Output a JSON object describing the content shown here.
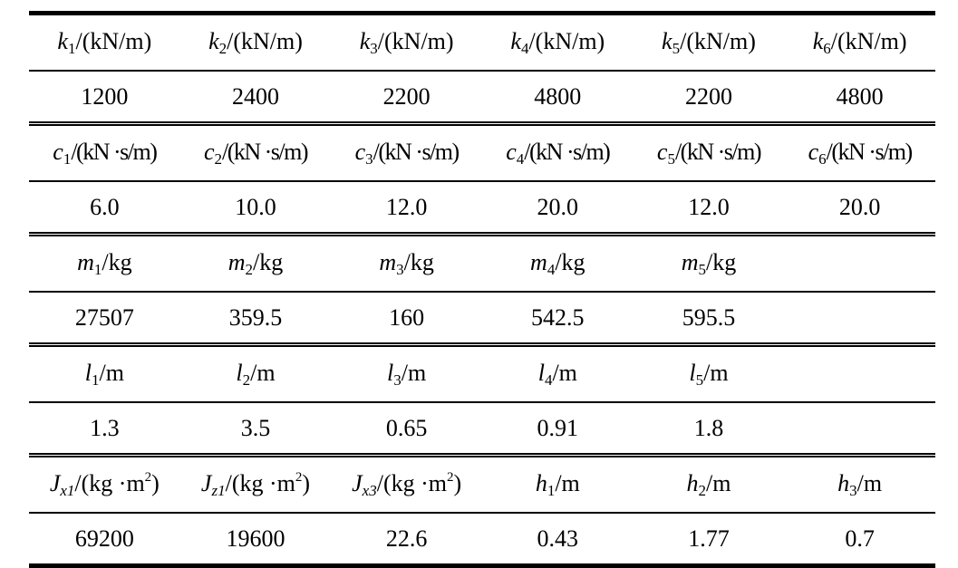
{
  "table": {
    "groups": [
      {
        "header": [
          [
            {
              "text": "k",
              "style": "italic"
            },
            {
              "text": "1",
              "style": "sub"
            },
            {
              "text": "/(kN/m)",
              "style": "normal"
            }
          ],
          [
            {
              "text": "k",
              "style": "italic"
            },
            {
              "text": "2",
              "style": "sub"
            },
            {
              "text": "/(kN/m)",
              "style": "normal"
            }
          ],
          [
            {
              "text": "k",
              "style": "italic"
            },
            {
              "text": "3",
              "style": "sub"
            },
            {
              "text": "/(kN/m)",
              "style": "normal"
            }
          ],
          [
            {
              "text": "k",
              "style": "italic"
            },
            {
              "text": "4",
              "style": "sub"
            },
            {
              "text": "/(kN/m)",
              "style": "normal"
            }
          ],
          [
            {
              "text": "k",
              "style": "italic"
            },
            {
              "text": "5",
              "style": "sub"
            },
            {
              "text": "/(kN/m)",
              "style": "normal"
            }
          ],
          [
            {
              "text": "k",
              "style": "italic"
            },
            {
              "text": "6",
              "style": "sub"
            },
            {
              "text": "/(kN/m)",
              "style": "normal"
            }
          ]
        ],
        "values": [
          "1200",
          "2400",
          "2200",
          "4800",
          "2200",
          "4800"
        ]
      },
      {
        "header": [
          [
            {
              "text": "c",
              "style": "italic"
            },
            {
              "text": "1",
              "style": "sub"
            },
            {
              "text": "/(kN ·s/m)",
              "style": "condensed"
            }
          ],
          [
            {
              "text": "c",
              "style": "italic"
            },
            {
              "text": "2",
              "style": "sub"
            },
            {
              "text": "/(kN ·s/m)",
              "style": "condensed"
            }
          ],
          [
            {
              "text": "c",
              "style": "italic"
            },
            {
              "text": "3",
              "style": "sub"
            },
            {
              "text": "/(kN ·s/m)",
              "style": "condensed"
            }
          ],
          [
            {
              "text": "c",
              "style": "italic"
            },
            {
              "text": "4",
              "style": "sub"
            },
            {
              "text": "/(kN ·s/m)",
              "style": "condensed"
            }
          ],
          [
            {
              "text": "c",
              "style": "italic"
            },
            {
              "text": "5",
              "style": "sub"
            },
            {
              "text": "/(kN ·s/m)",
              "style": "condensed"
            }
          ],
          [
            {
              "text": "c",
              "style": "italic"
            },
            {
              "text": "6",
              "style": "sub"
            },
            {
              "text": "/(kN ·s/m)",
              "style": "condensed"
            }
          ]
        ],
        "values": [
          "6.0",
          "10.0",
          "12.0",
          "20.0",
          "12.0",
          "20.0"
        ]
      },
      {
        "header": [
          [
            {
              "text": "m",
              "style": "italic"
            },
            {
              "text": "1",
              "style": "sub"
            },
            {
              "text": "/kg",
              "style": "normal"
            }
          ],
          [
            {
              "text": "m",
              "style": "italic"
            },
            {
              "text": "2",
              "style": "sub"
            },
            {
              "text": "/kg",
              "style": "normal"
            }
          ],
          [
            {
              "text": "m",
              "style": "italic"
            },
            {
              "text": "3",
              "style": "sub"
            },
            {
              "text": "/kg",
              "style": "normal"
            }
          ],
          [
            {
              "text": "m",
              "style": "italic"
            },
            {
              "text": "4",
              "style": "sub"
            },
            {
              "text": "/kg",
              "style": "normal"
            }
          ],
          [
            {
              "text": "m",
              "style": "italic"
            },
            {
              "text": "5",
              "style": "sub"
            },
            {
              "text": "/kg",
              "style": "normal"
            }
          ],
          null
        ],
        "values": [
          "27507",
          "359.5",
          "160",
          "542.5",
          "595.5",
          null
        ]
      },
      {
        "header": [
          [
            {
              "text": "l",
              "style": "italic"
            },
            {
              "text": "1",
              "style": "sub"
            },
            {
              "text": "/m",
              "style": "normal"
            }
          ],
          [
            {
              "text": "l",
              "style": "italic"
            },
            {
              "text": "2",
              "style": "sub"
            },
            {
              "text": "/m",
              "style": "normal"
            }
          ],
          [
            {
              "text": "l",
              "style": "italic"
            },
            {
              "text": "3",
              "style": "sub"
            },
            {
              "text": "/m",
              "style": "normal"
            }
          ],
          [
            {
              "text": "l",
              "style": "italic"
            },
            {
              "text": "4",
              "style": "sub"
            },
            {
              "text": "/m",
              "style": "normal"
            }
          ],
          [
            {
              "text": "l",
              "style": "italic"
            },
            {
              "text": "5",
              "style": "sub"
            },
            {
              "text": "/m",
              "style": "normal"
            }
          ],
          null
        ],
        "values": [
          "1.3",
          "3.5",
          "0.65",
          "0.91",
          "1.8",
          null
        ]
      },
      {
        "header": [
          [
            {
              "text": "J",
              "style": "italic"
            },
            {
              "text": "x1",
              "style": "sub-italic"
            },
            {
              "text": "/(kg ·m",
              "style": "normal"
            },
            {
              "text": "2",
              "style": "sup"
            },
            {
              "text": ")",
              "style": "normal"
            }
          ],
          [
            {
              "text": "J",
              "style": "italic"
            },
            {
              "text": "z1",
              "style": "sub-italic"
            },
            {
              "text": "/(kg ·m",
              "style": "normal"
            },
            {
              "text": "2",
              "style": "sup"
            },
            {
              "text": ")",
              "style": "normal"
            }
          ],
          [
            {
              "text": "J",
              "style": "italic"
            },
            {
              "text": "x3",
              "style": "sub-italic"
            },
            {
              "text": "/(kg ·m",
              "style": "normal"
            },
            {
              "text": "2",
              "style": "sup"
            },
            {
              "text": ")",
              "style": "normal"
            }
          ],
          [
            {
              "text": "h",
              "style": "italic"
            },
            {
              "text": "1",
              "style": "sub"
            },
            {
              "text": "/m",
              "style": "normal"
            }
          ],
          [
            {
              "text": "h",
              "style": "italic"
            },
            {
              "text": "2",
              "style": "sub"
            },
            {
              "text": "/m",
              "style": "normal"
            }
          ],
          [
            {
              "text": "h",
              "style": "italic"
            },
            {
              "text": "3",
              "style": "sub"
            },
            {
              "text": "/m",
              "style": "normal"
            }
          ]
        ],
        "values": [
          "69200",
          "19600",
          "22.6",
          "0.43",
          "1.77",
          "0.7"
        ]
      }
    ]
  }
}
